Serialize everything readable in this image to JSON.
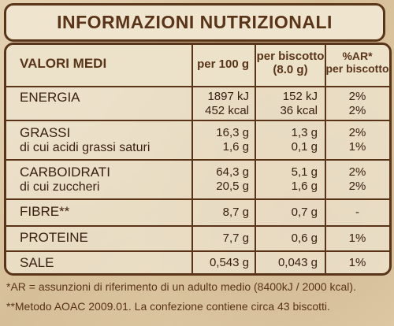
{
  "title": "INFORMAZIONI NUTRIZIONALI",
  "header": {
    "name": "VALORI MEDI",
    "per100": "per 100 g",
    "per_biscuit_line1": "per biscotto",
    "per_biscuit_line2": "(8.0 g)",
    "ar_line1": "%AR*",
    "ar_line2": "per biscotto"
  },
  "rows": [
    {
      "name": "ENERGIA",
      "sub": "",
      "per100": [
        "1897 kJ",
        "452 kcal"
      ],
      "biscuit": [
        "152 kJ",
        "36 kcal"
      ],
      "ar": [
        "2%",
        "2%"
      ]
    },
    {
      "name": "GRASSI",
      "sub": "di cui acidi grassi saturi",
      "per100": [
        "16,3 g",
        "1,6 g"
      ],
      "biscuit": [
        "1,3 g",
        "0,1 g"
      ],
      "ar": [
        "2%",
        "1%"
      ]
    },
    {
      "name": "CARBOIDRATI",
      "sub": "di cui zuccheri",
      "per100": [
        "64,3 g",
        "20,5 g"
      ],
      "biscuit": [
        "5,1 g",
        "1,6 g"
      ],
      "ar": [
        "2%",
        "2%"
      ]
    },
    {
      "name": "FIBRE**",
      "sub": "",
      "per100": [
        "8,7 g"
      ],
      "biscuit": [
        "0,7 g"
      ],
      "ar": [
        "-"
      ]
    },
    {
      "name": "PROTEINE",
      "sub": "",
      "per100": [
        "7,7 g"
      ],
      "biscuit": [
        "0,6 g"
      ],
      "ar": [
        "1%"
      ]
    },
    {
      "name": "SALE",
      "sub": "",
      "per100": [
        "0,543 g"
      ],
      "biscuit": [
        "0,043 g"
      ],
      "ar": [
        "1%"
      ]
    }
  ],
  "footnotes": [
    "*AR = assunzioni di riferimento di un adulto medio (8400kJ / 2000 kcal).",
    "**Metodo AOAC 2009.01. La confezione contiene circa 43 biscotti."
  ],
  "colors": {
    "frame": "#5a3418",
    "text": "#3a2010",
    "paper": "#d9c4a2"
  }
}
